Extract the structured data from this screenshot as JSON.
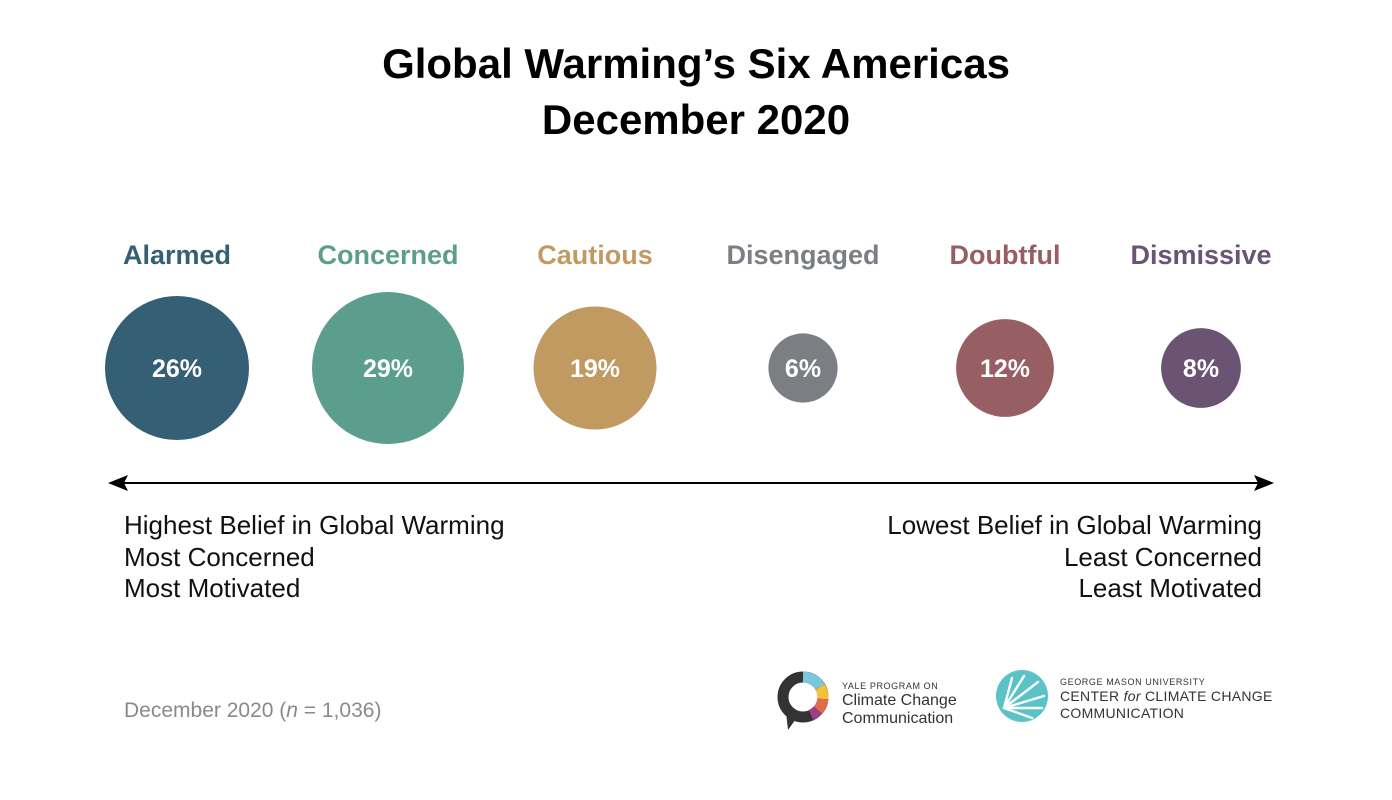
{
  "title_line1": "Global Warming’s Six Americas",
  "title_line2": "December 2020",
  "chart_data": {
    "type": "scatter",
    "title": "Global Warming’s Six Americas December 2020",
    "categories": [
      "Alarmed",
      "Concerned",
      "Cautious",
      "Disengaged",
      "Doubtful",
      "Dismissive"
    ],
    "values": [
      26,
      29,
      19,
      6,
      12,
      8
    ],
    "labels": [
      "26%",
      "29%",
      "19%",
      "6%",
      "12%",
      "8%"
    ],
    "colors": [
      "#355f74",
      "#5c9e8d",
      "#c19a62",
      "#7b7f84",
      "#975e63",
      "#6b5374"
    ]
  },
  "left_text": [
    "Highest Belief in Global Warming",
    "Most Concerned",
    "Most Motivated"
  ],
  "right_text": [
    "Lowest Belief in Global Warming",
    "Least Concerned",
    "Least Motivated"
  ],
  "footnote": {
    "prefix": "December 2020 (",
    "n_symbol": "n",
    "equals": " = ",
    "count": "1,036",
    "suffix": ")"
  },
  "logos": {
    "yale": {
      "icon": "speech-bubble-ring-icon",
      "small": "YALE PROGRAM ON",
      "line1": "Climate Change",
      "line2": "Communication"
    },
    "gmu": {
      "icon": "starburst-circle-icon",
      "small": "GEORGE MASON UNIVERSITY",
      "line1_a": "CENTER ",
      "line1_for": "for",
      "line1_b": " CLIMATE CHANGE",
      "line2": "COMMUNICATION",
      "color": "#5bc2c7"
    }
  }
}
